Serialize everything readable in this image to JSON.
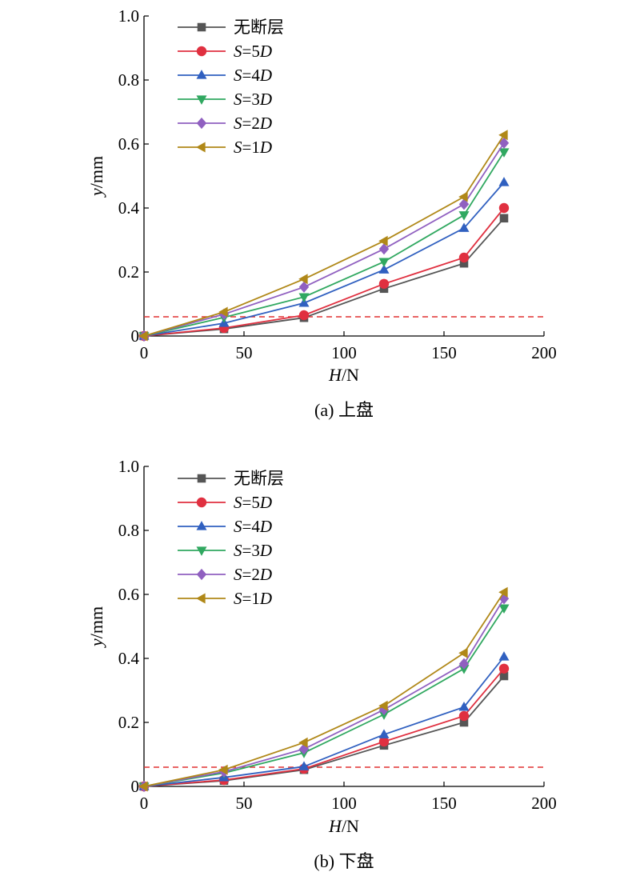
{
  "legend_labels": [
    {
      "main": "无断层",
      "key": "",
      "rest": ""
    },
    {
      "main": "S",
      "key": "=5",
      "rest": "D"
    },
    {
      "main": "S",
      "key": "=4",
      "rest": "D"
    },
    {
      "main": "S",
      "key": "=3",
      "rest": "D"
    },
    {
      "main": "S",
      "key": "=2",
      "rest": "D"
    },
    {
      "main": "S",
      "key": "=1",
      "rest": "D"
    }
  ],
  "colors": {
    "无断层": "#555555",
    "S=5D": "#e03040",
    "S=4D": "#3060c0",
    "S=3D": "#30a860",
    "S=2D": "#9060c0",
    "S=1D": "#b08818",
    "reference": "#e03030"
  },
  "chart_data": [
    {
      "type": "line",
      "caption": "(a) 上盘",
      "xlabel": {
        "var": "H",
        "unit": "/N"
      },
      "ylabel": {
        "var": "y",
        "unit": "/mm"
      },
      "xlim": [
        0,
        200
      ],
      "ylim": [
        0,
        1.0
      ],
      "xticks": [
        "0",
        "50",
        "100",
        "150",
        "200"
      ],
      "yticks": [
        "0",
        "0.2",
        "0.4",
        "0.6",
        "0.8",
        "1.0"
      ],
      "x": [
        0,
        40,
        80,
        120,
        160,
        180
      ],
      "reference_y": 0.06,
      "series": [
        {
          "name": "无断层",
          "marker": "square",
          "values": [
            0,
            0.022,
            0.057,
            0.148,
            0.227,
            0.368
          ]
        },
        {
          "name": "S=5D",
          "marker": "circle",
          "values": [
            0,
            0.025,
            0.065,
            0.163,
            0.245,
            0.4
          ]
        },
        {
          "name": "S=4D",
          "marker": "triangle-up",
          "values": [
            0,
            0.04,
            0.103,
            0.207,
            0.337,
            0.48
          ]
        },
        {
          "name": "S=3D",
          "marker": "triangle-down",
          "values": [
            0,
            0.058,
            0.122,
            0.232,
            0.378,
            0.575
          ]
        },
        {
          "name": "S=2D",
          "marker": "diamond",
          "values": [
            0,
            0.068,
            0.153,
            0.272,
            0.412,
            0.603
          ]
        },
        {
          "name": "S=1D",
          "marker": "triangle-left",
          "values": [
            0,
            0.075,
            0.178,
            0.297,
            0.435,
            0.628
          ]
        }
      ]
    },
    {
      "type": "line",
      "caption": "(b) 下盘",
      "xlabel": {
        "var": "H",
        "unit": "/N"
      },
      "ylabel": {
        "var": "y",
        "unit": "/mm"
      },
      "xlim": [
        0,
        200
      ],
      "ylim": [
        0,
        1.0
      ],
      "xticks": [
        "0",
        "50",
        "100",
        "150",
        "200"
      ],
      "yticks": [
        "0",
        "0.2",
        "0.4",
        "0.6",
        "0.8",
        "1.0"
      ],
      "x": [
        0,
        40,
        80,
        120,
        160,
        180
      ],
      "reference_y": 0.06,
      "series": [
        {
          "name": "无断层",
          "marker": "square",
          "values": [
            0,
            0.018,
            0.052,
            0.128,
            0.2,
            0.345
          ]
        },
        {
          "name": "S=5D",
          "marker": "circle",
          "values": [
            0,
            0.02,
            0.055,
            0.14,
            0.22,
            0.368
          ]
        },
        {
          "name": "S=4D",
          "marker": "triangle-up",
          "values": [
            0,
            0.028,
            0.062,
            0.162,
            0.248,
            0.405
          ]
        },
        {
          "name": "S=3D",
          "marker": "triangle-down",
          "values": [
            0,
            0.042,
            0.105,
            0.225,
            0.368,
            0.557
          ]
        },
        {
          "name": "S=2D",
          "marker": "diamond",
          "values": [
            0,
            0.046,
            0.117,
            0.24,
            0.383,
            0.587
          ]
        },
        {
          "name": "S=1D",
          "marker": "triangle-left",
          "values": [
            0,
            0.052,
            0.137,
            0.252,
            0.417,
            0.607
          ]
        }
      ]
    }
  ]
}
